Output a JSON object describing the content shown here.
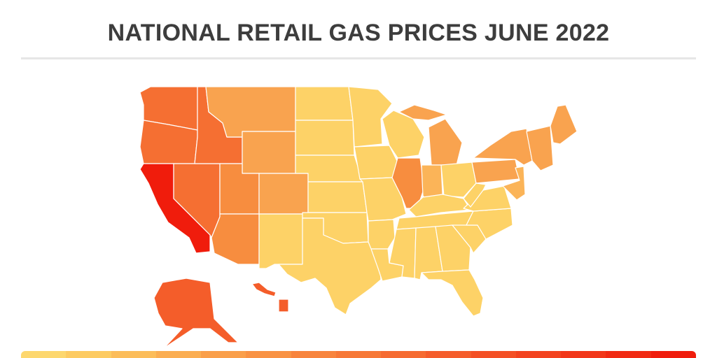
{
  "title": "NATIONAL RETAIL GAS PRICES JUNE 2022",
  "colors": {
    "level1": "#fdd267",
    "level2": "#fbb458",
    "level3": "#f9a34f",
    "level4": "#f78d3f",
    "level5": "#f56f32",
    "level6": "#f45d2a",
    "level7": "#f01c0c"
  },
  "states": [
    {
      "id": "WA",
      "level": 5
    },
    {
      "id": "OR",
      "level": 5
    },
    {
      "id": "CA",
      "level": 7
    },
    {
      "id": "NV",
      "level": 5
    },
    {
      "id": "ID",
      "level": 5
    },
    {
      "id": "MT",
      "level": 3
    },
    {
      "id": "WY",
      "level": 3
    },
    {
      "id": "UT",
      "level": 4
    },
    {
      "id": "AZ",
      "level": 4
    },
    {
      "id": "CO",
      "level": 3
    },
    {
      "id": "NM",
      "level": 1
    },
    {
      "id": "ND",
      "level": 1
    },
    {
      "id": "SD",
      "level": 1
    },
    {
      "id": "NE",
      "level": 1
    },
    {
      "id": "KS",
      "level": 1
    },
    {
      "id": "OK",
      "level": 1
    },
    {
      "id": "TX",
      "level": 1
    },
    {
      "id": "MN",
      "level": 1
    },
    {
      "id": "IA",
      "level": 1
    },
    {
      "id": "MO",
      "level": 1
    },
    {
      "id": "AR",
      "level": 1
    },
    {
      "id": "LA",
      "level": 1
    },
    {
      "id": "WI",
      "level": 1
    },
    {
      "id": "IL",
      "level": 4
    },
    {
      "id": "MI",
      "level": 3
    },
    {
      "id": "IN",
      "level": 2
    },
    {
      "id": "OH",
      "level": 1
    },
    {
      "id": "KY",
      "level": 1
    },
    {
      "id": "TN",
      "level": 1
    },
    {
      "id": "MS",
      "level": 1
    },
    {
      "id": "AL",
      "level": 1
    },
    {
      "id": "GA",
      "level": 1
    },
    {
      "id": "FL",
      "level": 1
    },
    {
      "id": "SC",
      "level": 1
    },
    {
      "id": "NC",
      "level": 1
    },
    {
      "id": "VA",
      "level": 1
    },
    {
      "id": "WV",
      "level": 1
    },
    {
      "id": "PA",
      "level": 3
    },
    {
      "id": "NY",
      "level": 3
    },
    {
      "id": "ME",
      "level": 3
    },
    {
      "id": "NE-states",
      "level": 3
    },
    {
      "id": "NJ-MD-DE",
      "level": 2
    },
    {
      "id": "AK",
      "level": 6
    },
    {
      "id": "HI",
      "level": 6
    }
  ],
  "legend_colors": [
    "#fdd76e",
    "#fdcb62",
    "#fcbd5a",
    "#fbae52",
    "#fa9f4a",
    "#f99243",
    "#f8843d",
    "#f77837",
    "#f66b31",
    "#f55d2b",
    "#f45025",
    "#f3431f",
    "#f23719",
    "#f12a13",
    "#f01d0d"
  ]
}
